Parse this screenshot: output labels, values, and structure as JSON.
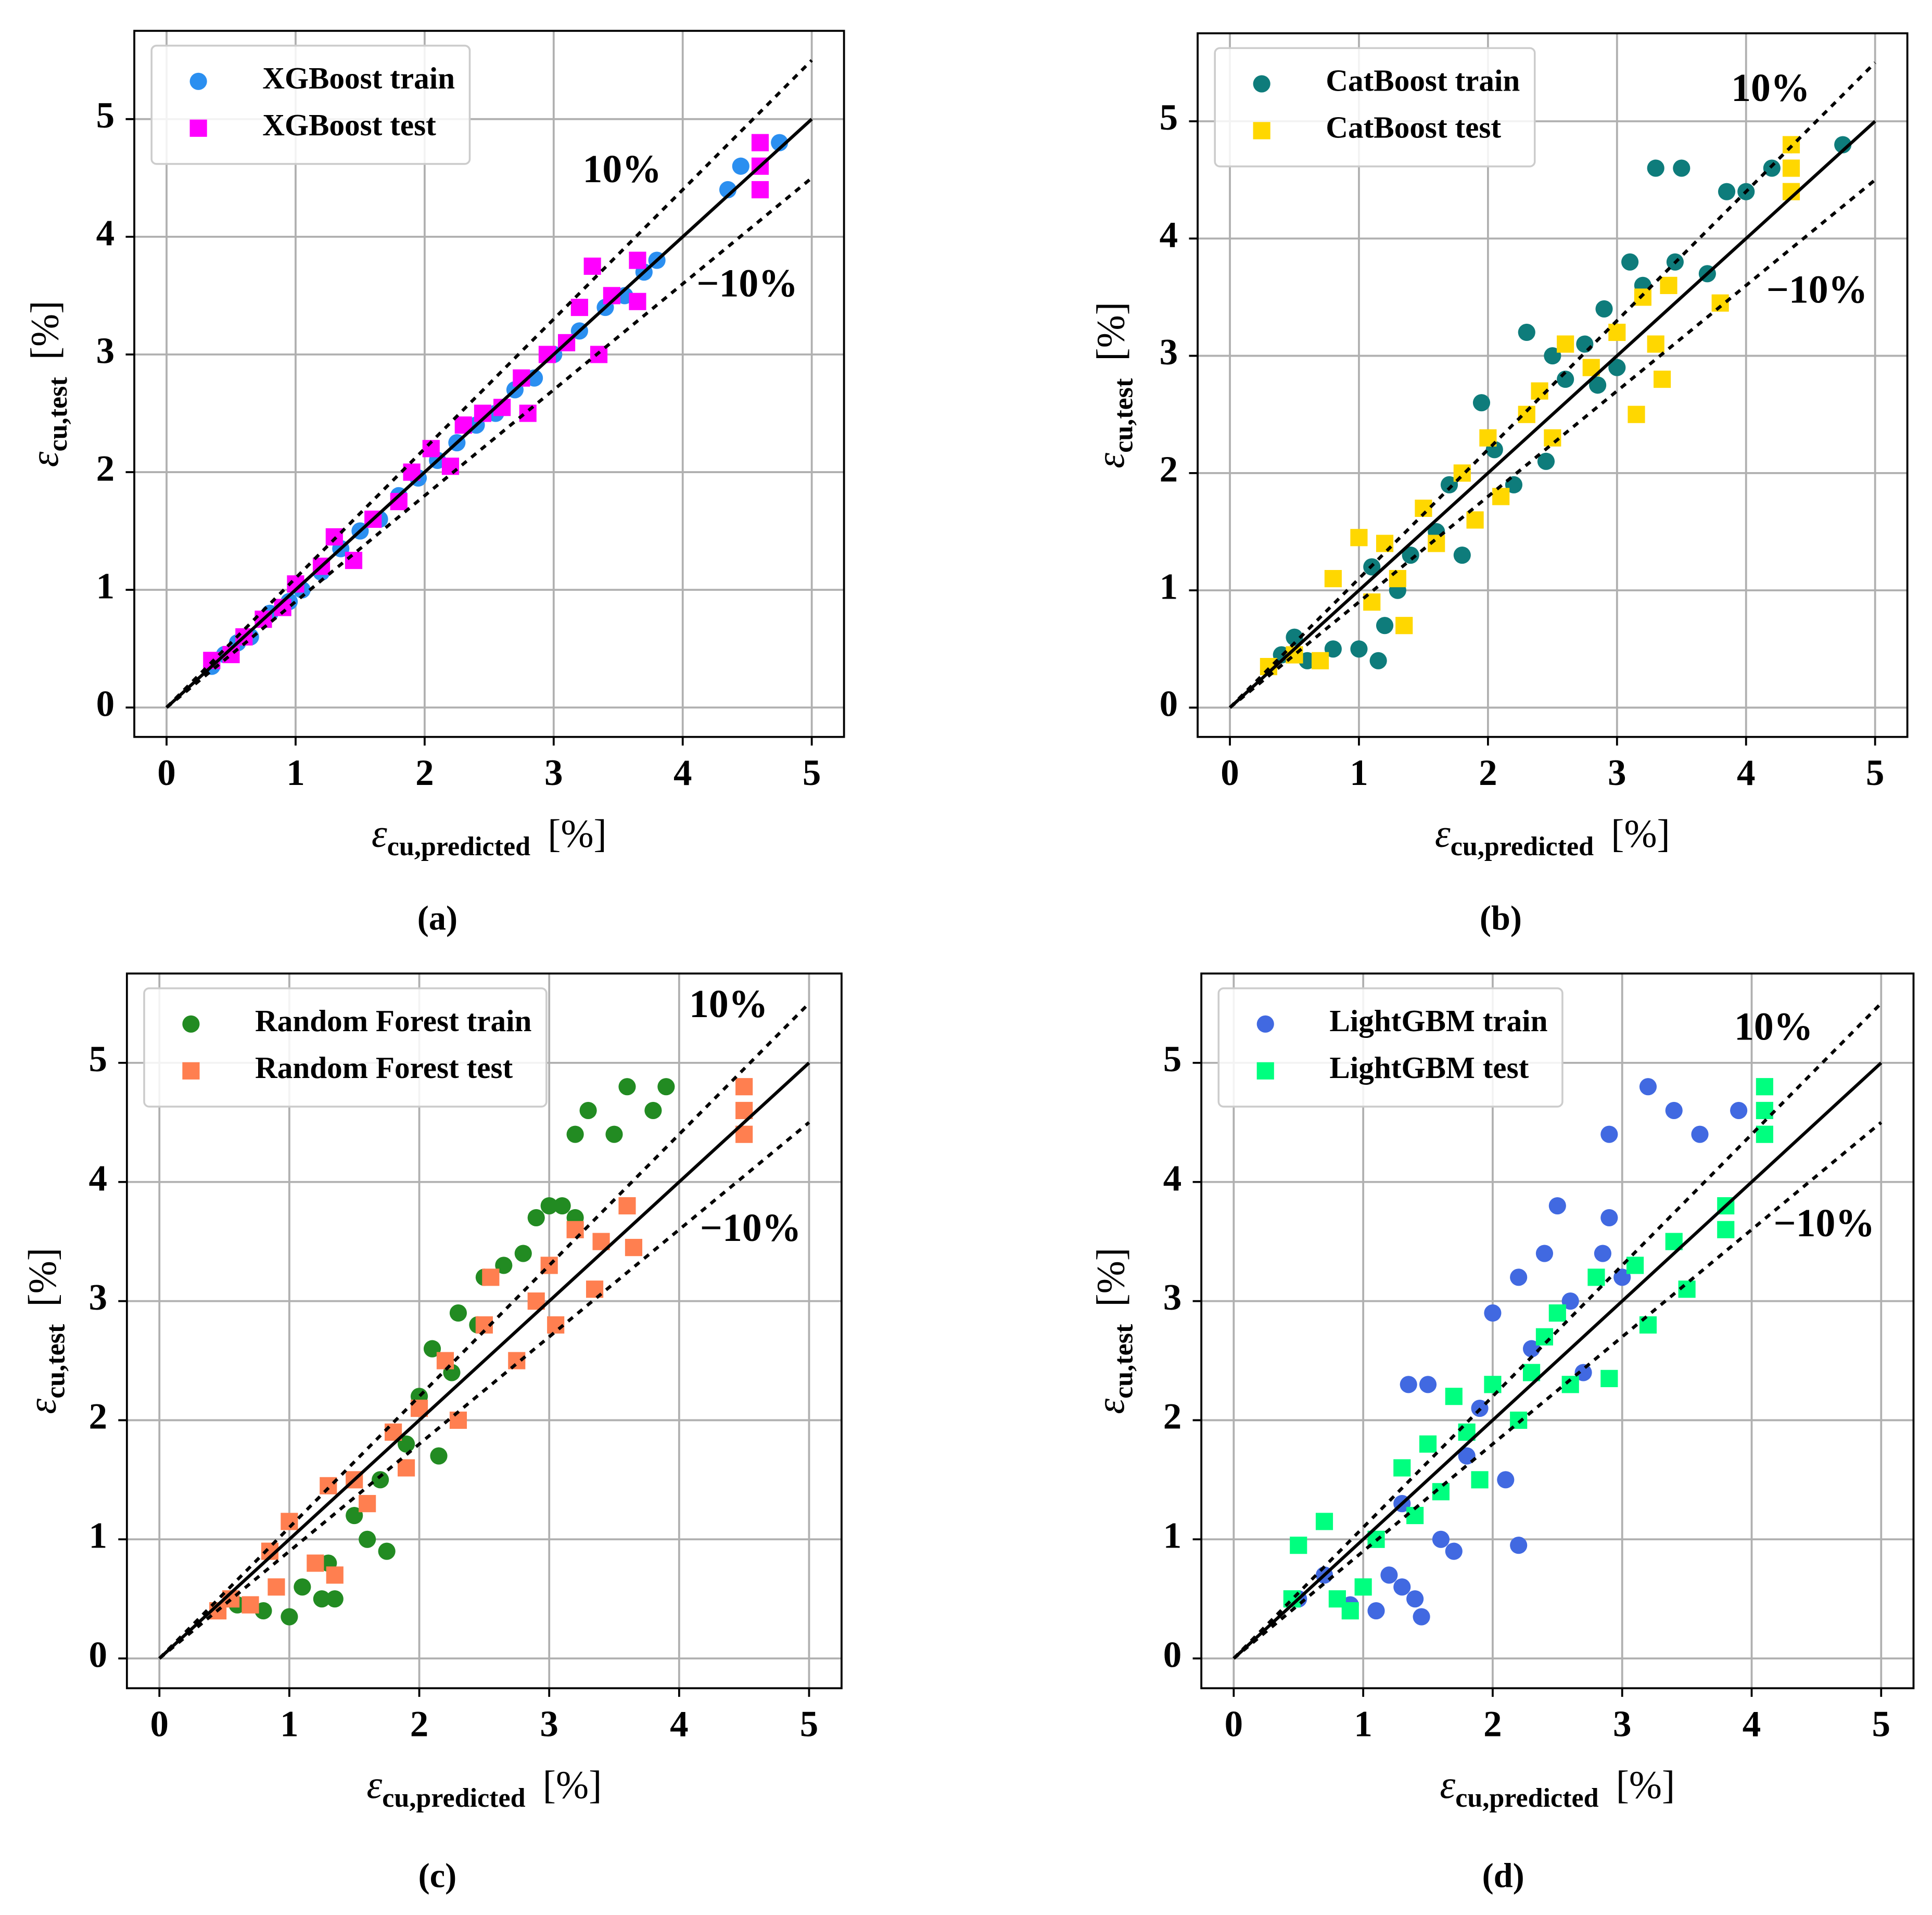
{
  "chart_data": [
    {
      "type": "scatter",
      "caption": "(a)",
      "xlabel": {
        "symbol": "ε",
        "subscript": "cu,predicted",
        "unit": "[%]"
      },
      "ylabel": {
        "symbol": "ε",
        "subscript": "cu,test",
        "unit": "[%]"
      },
      "xlim": [
        -0.25,
        5.25
      ],
      "ylim": [
        -0.25,
        5.75
      ],
      "xticks": [
        0,
        1,
        2,
        3,
        4,
        5
      ],
      "yticks": [
        0,
        1,
        2,
        3,
        4,
        5
      ],
      "grid": true,
      "legend": "upper left",
      "annotations": [
        "10%",
        "−10%"
      ],
      "reference_lines": {
        "x_range": [
          0,
          5
        ],
        "lines": [
          {
            "slope": 1,
            "dashed": false
          },
          {
            "slope": 1.1,
            "dashed": true
          },
          {
            "slope": 0.9,
            "dashed": true
          }
        ]
      },
      "series": [
        {
          "name": "XGBoost train",
          "color": "#2b8ff0",
          "marker": "circle",
          "x": [
            0.35,
            0.45,
            0.55,
            0.65,
            0.8,
            0.95,
            1.05,
            1.2,
            1.35,
            1.5,
            1.65,
            1.8,
            1.95,
            2.1,
            2.25,
            2.4,
            2.55,
            2.7,
            2.85,
            3.0,
            3.2,
            3.4,
            3.55,
            3.7,
            3.8,
            4.35,
            4.45,
            4.75
          ],
          "y": [
            0.35,
            0.45,
            0.55,
            0.6,
            0.8,
            0.9,
            1.0,
            1.15,
            1.35,
            1.5,
            1.6,
            1.8,
            1.95,
            2.1,
            2.25,
            2.4,
            2.5,
            2.7,
            2.8,
            3.0,
            3.2,
            3.4,
            3.5,
            3.7,
            3.8,
            4.4,
            4.6,
            4.8
          ]
        },
        {
          "name": "XGBoost test",
          "color": "#ff00ff",
          "marker": "square",
          "x": [
            0.35,
            0.5,
            0.6,
            0.75,
            0.9,
            1.0,
            1.2,
            1.3,
            1.45,
            1.6,
            1.8,
            1.9,
            2.05,
            2.2,
            2.3,
            2.45,
            2.6,
            2.75,
            2.8,
            2.95,
            3.1,
            3.2,
            3.3,
            3.35,
            3.45,
            3.65,
            3.65,
            4.6,
            4.6,
            4.6
          ],
          "y": [
            0.4,
            0.45,
            0.6,
            0.75,
            0.85,
            1.05,
            1.2,
            1.45,
            1.25,
            1.6,
            1.75,
            2.0,
            2.2,
            2.05,
            2.4,
            2.5,
            2.55,
            2.8,
            2.5,
            3.0,
            3.1,
            3.4,
            3.75,
            3.0,
            3.5,
            3.8,
            3.45,
            4.8,
            4.6,
            4.4
          ]
        }
      ]
    },
    {
      "type": "scatter",
      "caption": "(b)",
      "xlabel": {
        "symbol": "ε",
        "subscript": "cu,predicted",
        "unit": "[%]"
      },
      "ylabel": {
        "symbol": "ε",
        "subscript": "cu,test",
        "unit": "[%]"
      },
      "xlim": [
        -0.25,
        5.25
      ],
      "ylim": [
        -0.25,
        5.75
      ],
      "xticks": [
        0,
        1,
        2,
        3,
        4,
        5
      ],
      "yticks": [
        0,
        1,
        2,
        3,
        4,
        5
      ],
      "grid": true,
      "legend": "upper left",
      "annotations": [
        "10%",
        "−10%"
      ],
      "reference_lines": {
        "x_range": [
          0,
          5
        ],
        "lines": [
          {
            "slope": 1,
            "dashed": false
          },
          {
            "slope": 1.1,
            "dashed": true
          },
          {
            "slope": 0.9,
            "dashed": true
          }
        ]
      },
      "series": [
        {
          "name": "CatBoost train",
          "color": "#0e7c7b",
          "marker": "circle",
          "x": [
            0.4,
            0.5,
            0.6,
            0.8,
            1.0,
            1.15,
            1.2,
            1.1,
            1.3,
            1.4,
            1.6,
            1.7,
            1.8,
            1.95,
            2.05,
            2.2,
            2.3,
            2.45,
            2.5,
            2.6,
            2.75,
            2.85,
            2.9,
            3.0,
            3.1,
            3.2,
            3.3,
            3.45,
            3.5,
            3.7,
            3.85,
            4.0,
            4.2,
            4.35,
            4.75
          ],
          "y": [
            0.45,
            0.6,
            0.4,
            0.5,
            0.5,
            0.4,
            0.7,
            1.2,
            1.0,
            1.3,
            1.5,
            1.9,
            1.3,
            2.6,
            2.2,
            1.9,
            3.2,
            2.1,
            3.0,
            2.8,
            3.1,
            2.75,
            3.4,
            2.9,
            3.8,
            3.6,
            4.6,
            3.8,
            4.6,
            3.7,
            4.4,
            4.4,
            4.6,
            4.8,
            4.8
          ]
        },
        {
          "name": "CatBoost test",
          "color": "#ffd700",
          "marker": "square",
          "x": [
            0.3,
            0.5,
            0.7,
            0.8,
            1.0,
            1.1,
            1.2,
            1.3,
            1.35,
            1.5,
            1.6,
            1.8,
            1.9,
            2.0,
            2.1,
            2.3,
            2.4,
            2.5,
            2.6,
            2.8,
            3.0,
            3.15,
            3.2,
            3.3,
            3.35,
            3.4,
            3.8,
            4.35,
            4.35,
            4.35
          ],
          "y": [
            0.35,
            0.45,
            0.4,
            1.1,
            1.45,
            0.9,
            1.4,
            1.1,
            0.7,
            1.7,
            1.4,
            2.0,
            1.6,
            2.3,
            1.8,
            2.5,
            2.7,
            2.3,
            3.1,
            2.9,
            3.2,
            2.5,
            3.5,
            3.1,
            2.8,
            3.6,
            3.45,
            4.8,
            4.6,
            4.4
          ]
        }
      ]
    },
    {
      "type": "scatter",
      "caption": "(c)",
      "xlabel": {
        "symbol": "ε",
        "subscript": "cu,predicted",
        "unit": "[%]"
      },
      "ylabel": {
        "symbol": "ε",
        "subscript": "cu,test",
        "unit": "[%]"
      },
      "xlim": [
        -0.25,
        5.25
      ],
      "ylim": [
        -0.25,
        5.75
      ],
      "xticks": [
        0,
        1,
        2,
        3,
        4,
        5
      ],
      "yticks": [
        0,
        1,
        2,
        3,
        4,
        5
      ],
      "grid": true,
      "legend": "upper left",
      "annotations": [
        "10%",
        "−10%"
      ],
      "reference_lines": {
        "x_range": [
          0,
          5
        ],
        "lines": [
          {
            "slope": 1,
            "dashed": false
          },
          {
            "slope": 1.1,
            "dashed": true
          },
          {
            "slope": 0.9,
            "dashed": true
          }
        ]
      },
      "series": [
        {
          "name": "Random Forest train",
          "color": "#228b22",
          "marker": "circle",
          "x": [
            0.6,
            0.8,
            1.0,
            1.1,
            1.25,
            1.35,
            1.3,
            1.5,
            1.6,
            1.75,
            1.7,
            1.9,
            2.0,
            2.15,
            2.1,
            2.25,
            2.3,
            2.45,
            2.5,
            2.65,
            2.8,
            2.9,
            3.0,
            3.1,
            3.2,
            3.3,
            3.5,
            3.6,
            3.2,
            3.9,
            3.8
          ],
          "y": [
            0.45,
            0.4,
            0.35,
            0.6,
            0.5,
            0.5,
            0.8,
            1.2,
            1.0,
            0.9,
            1.5,
            1.8,
            2.2,
            1.7,
            2.6,
            2.4,
            2.9,
            2.8,
            3.2,
            3.3,
            3.4,
            3.7,
            3.8,
            3.8,
            3.7,
            4.6,
            4.4,
            4.8,
            4.4,
            4.8,
            4.6
          ]
        },
        {
          "name": "Random Forest test",
          "color": "#ff7f50",
          "marker": "square",
          "x": [
            0.45,
            0.55,
            0.7,
            0.85,
            0.9,
            1.0,
            1.2,
            1.3,
            1.35,
            1.5,
            1.6,
            1.8,
            1.9,
            2.0,
            2.2,
            2.3,
            2.5,
            2.55,
            2.75,
            2.9,
            3.0,
            3.05,
            3.2,
            3.4,
            3.6,
            3.65,
            3.35,
            4.5,
            4.5,
            4.5
          ],
          "y": [
            0.4,
            0.5,
            0.45,
            0.9,
            0.6,
            1.15,
            0.8,
            1.45,
            0.7,
            1.5,
            1.3,
            1.9,
            1.6,
            2.1,
            2.5,
            2.0,
            2.8,
            3.2,
            2.5,
            3.0,
            3.3,
            2.8,
            3.6,
            3.5,
            3.8,
            3.45,
            3.1,
            4.8,
            4.6,
            4.4
          ]
        }
      ]
    },
    {
      "type": "scatter",
      "caption": "(d)",
      "xlabel": {
        "symbol": "ε",
        "subscript": "cu,predicted",
        "unit": "[%]"
      },
      "ylabel": {
        "symbol": "ε",
        "subscript": "cu,test",
        "unit": "[%]"
      },
      "xlim": [
        -0.25,
        5.25
      ],
      "ylim": [
        -0.25,
        5.75
      ],
      "xticks": [
        0,
        1,
        2,
        3,
        4,
        5
      ],
      "yticks": [
        0,
        1,
        2,
        3,
        4,
        5
      ],
      "grid": true,
      "legend": "upper left",
      "annotations": [
        "10%",
        "−10%"
      ],
      "reference_lines": {
        "x_range": [
          0,
          5
        ],
        "lines": [
          {
            "slope": 1,
            "dashed": false
          },
          {
            "slope": 1.1,
            "dashed": true
          },
          {
            "slope": 0.9,
            "dashed": true
          }
        ]
      },
      "series": [
        {
          "name": "LightGBM train",
          "color": "#4169e1",
          "marker": "circle",
          "x": [
            0.5,
            0.7,
            0.9,
            1.1,
            1.2,
            1.3,
            1.4,
            1.45,
            1.3,
            1.35,
            1.5,
            1.6,
            1.7,
            1.8,
            1.9,
            2.0,
            2.1,
            2.2,
            2.2,
            2.3,
            2.4,
            2.5,
            2.6,
            2.7,
            2.85,
            2.9,
            3.0,
            2.9,
            3.2,
            3.4,
            3.6,
            3.9
          ],
          "y": [
            0.5,
            0.7,
            0.45,
            0.4,
            0.7,
            0.6,
            0.5,
            0.35,
            1.3,
            2.3,
            2.3,
            1.0,
            0.9,
            1.7,
            2.1,
            2.9,
            1.5,
            0.95,
            3.2,
            2.6,
            3.4,
            3.8,
            3.0,
            2.4,
            3.4,
            3.7,
            3.2,
            4.4,
            4.8,
            4.6,
            4.4,
            4.6
          ]
        },
        {
          "name": "LightGBM test",
          "color": "#00ff7f",
          "marker": "square",
          "x": [
            0.45,
            0.5,
            0.7,
            0.8,
            0.9,
            1.0,
            1.1,
            1.3,
            1.4,
            1.5,
            1.6,
            1.7,
            1.8,
            1.9,
            2.0,
            2.2,
            2.3,
            2.4,
            2.5,
            2.6,
            2.8,
            2.9,
            3.1,
            3.2,
            3.4,
            3.5,
            3.8,
            3.8,
            4.1,
            4.1,
            4.1
          ],
          "y": [
            0.5,
            0.95,
            1.15,
            0.5,
            0.4,
            0.6,
            1.0,
            1.6,
            1.2,
            1.8,
            1.4,
            2.2,
            1.9,
            1.5,
            2.3,
            2.0,
            2.4,
            2.7,
            2.9,
            2.3,
            3.2,
            2.35,
            3.3,
            2.8,
            3.5,
            3.1,
            3.6,
            3.8,
            4.8,
            4.6,
            4.4
          ]
        }
      ]
    }
  ]
}
